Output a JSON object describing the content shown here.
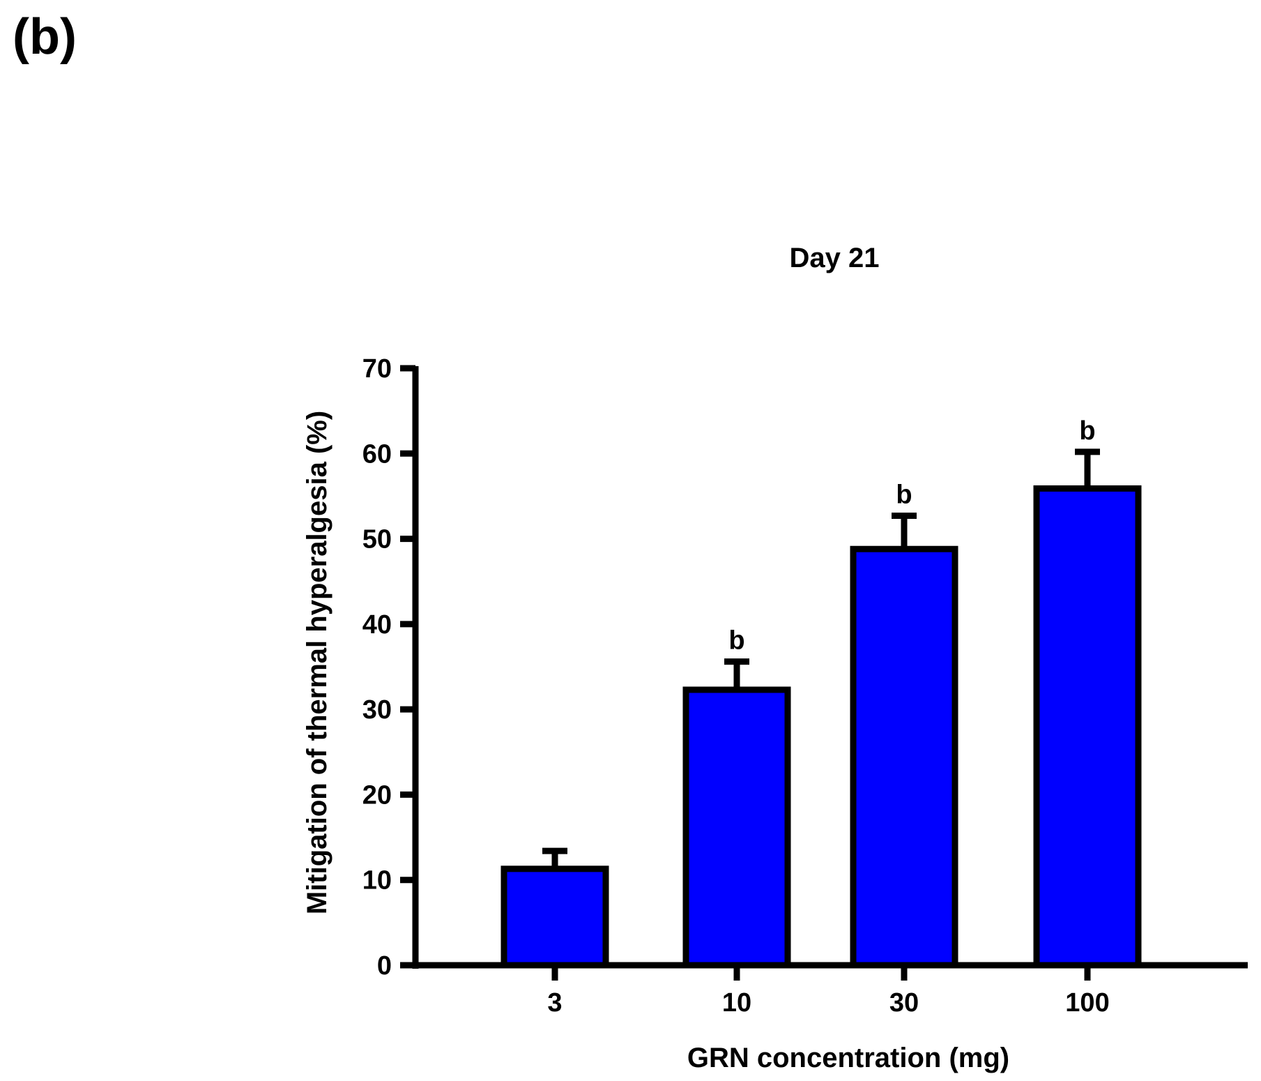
{
  "panel_label": "(b)",
  "chart_data": {
    "type": "bar",
    "title": "Day 21",
    "xlabel": "GRN concentration (mg)",
    "ylabel": "Mitigation of thermal hyperalgesia (%)",
    "categories": [
      "3",
      "10",
      "30",
      "100"
    ],
    "values": [
      11.3,
      32.3,
      48.8,
      55.9
    ],
    "errors": [
      2.1,
      3.3,
      3.9,
      4.3
    ],
    "significance": [
      "",
      "b",
      "b",
      "b"
    ],
    "ylim": [
      0,
      70
    ],
    "yticks": [
      0,
      10,
      20,
      30,
      40,
      50,
      60,
      70
    ],
    "bar_color": "#0000ff",
    "edge_color": "#000000",
    "grid": false
  }
}
